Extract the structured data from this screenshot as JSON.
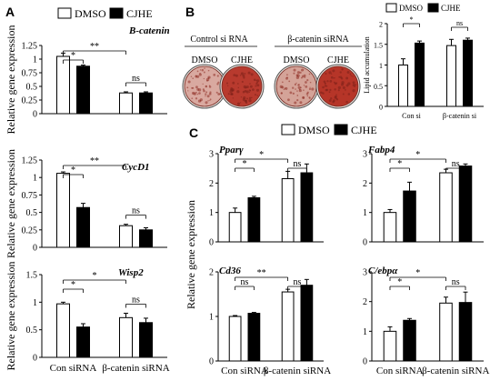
{
  "panels": {
    "A": "A",
    "B": "B",
    "C": "C"
  },
  "legend": {
    "dmso": "DMSO",
    "cjhe": "CJHE"
  },
  "panel_b_images": {
    "control_label": "Control si RNA",
    "beta_label": "β-catenin siRNA",
    "dish_labels": [
      "DMSO",
      "CJHE",
      "DMSO",
      "CJHE"
    ]
  },
  "colors": {
    "dmso_fill": "#ffffff",
    "cjhe_fill": "#000000",
    "stain": "#b0322a"
  },
  "chart_data": [
    {
      "id": "bcatenin",
      "type": "bar",
      "gene": "B-catenin",
      "ylabel": "Relative gene expression",
      "ylim": [
        0,
        1.25
      ],
      "ticks": [
        "0",
        "0.25",
        "0.5",
        "0.75",
        "1",
        "1.25"
      ],
      "categories": [
        "Con siRNA",
        "β-catenin siRNA"
      ],
      "show_xlabels": false,
      "series": [
        {
          "name": "DMSO",
          "values": [
            1.05,
            0.38
          ],
          "errors": [
            0.06,
            0.02
          ]
        },
        {
          "name": "CJHE",
          "values": [
            0.87,
            0.38
          ],
          "errors": [
            0.02,
            0.02
          ]
        }
      ],
      "annotations": [
        "*",
        "**",
        "ns"
      ]
    },
    {
      "id": "cycd1",
      "type": "bar",
      "gene": "CycD1",
      "ylabel": "Relative gene expression",
      "ylim": [
        0,
        1.25
      ],
      "ticks": [
        "0",
        "0.25",
        "0.5",
        "0.75",
        "1",
        "1.25"
      ],
      "categories": [
        "Con siRNA",
        "β-catenin siRNA"
      ],
      "show_xlabels": false,
      "series": [
        {
          "name": "DMSO",
          "values": [
            1.06,
            0.31
          ],
          "errors": [
            0.02,
            0.02
          ]
        },
        {
          "name": "CJHE",
          "values": [
            0.57,
            0.25
          ],
          "errors": [
            0.06,
            0.03
          ]
        }
      ],
      "annotations": [
        "*",
        "**",
        "ns"
      ]
    },
    {
      "id": "wisp2",
      "type": "bar",
      "gene": "Wisp2",
      "ylabel": "Relative gene expression",
      "ylim": [
        0,
        1.5
      ],
      "ticks": [
        "0",
        "0.5",
        "1",
        "1.5"
      ],
      "categories": [
        "Con siRNA",
        "β-catenin siRNA"
      ],
      "show_xlabels": true,
      "series": [
        {
          "name": "DMSO",
          "values": [
            0.97,
            0.72
          ],
          "errors": [
            0.03,
            0.08
          ]
        },
        {
          "name": "CJHE",
          "values": [
            0.55,
            0.63
          ],
          "errors": [
            0.06,
            0.08
          ]
        }
      ],
      "annotations": [
        "*",
        "*",
        "ns"
      ]
    },
    {
      "id": "lipid",
      "type": "bar",
      "ylabel": "Lipid accumulation",
      "ylim": [
        0,
        2
      ],
      "ticks": [
        "0",
        "0.5",
        "1",
        "1.5",
        "2"
      ],
      "categories": [
        "Con si",
        "β-catenin si"
      ],
      "show_xlabels": true,
      "series": [
        {
          "name": "DMSO",
          "values": [
            1.0,
            1.47
          ],
          "errors": [
            0.15,
            0.15
          ]
        },
        {
          "name": "CJHE",
          "values": [
            1.53,
            1.6
          ],
          "errors": [
            0.05,
            0.05
          ]
        }
      ],
      "annotations": [
        "*",
        "ns"
      ]
    },
    {
      "id": "pparg",
      "type": "bar",
      "gene": "Pparγ",
      "ylabel": "",
      "ylim": [
        0,
        3
      ],
      "ticks": [
        "0",
        "1",
        "2",
        "3"
      ],
      "categories": [
        "Con siRNA",
        "β-catenin siRNA"
      ],
      "show_xlabels": false,
      "series": [
        {
          "name": "DMSO",
          "values": [
            1.0,
            2.15
          ],
          "errors": [
            0.15,
            0.25
          ]
        },
        {
          "name": "CJHE",
          "values": [
            1.5,
            2.35
          ],
          "errors": [
            0.05,
            0.3
          ]
        }
      ],
      "annotations": [
        "*",
        "*",
        "ns"
      ]
    },
    {
      "id": "fabp4",
      "type": "bar",
      "gene": "Fabp4",
      "ylabel": "",
      "ylim": [
        0,
        3
      ],
      "ticks": [
        "0",
        "1",
        "2",
        "3"
      ],
      "categories": [
        "Con siRNA",
        "β-catenin siRNA"
      ],
      "show_xlabels": false,
      "series": [
        {
          "name": "DMSO",
          "values": [
            1.0,
            2.35
          ],
          "errors": [
            0.1,
            0.12
          ]
        },
        {
          "name": "CJHE",
          "values": [
            1.73,
            2.58
          ],
          "errors": [
            0.3,
            0.07
          ]
        }
      ],
      "annotations": [
        "*",
        "*",
        "ns"
      ]
    },
    {
      "id": "cd36",
      "type": "bar",
      "gene": "Cd36",
      "ylabel": "",
      "ylim": [
        0,
        2
      ],
      "ticks": [
        "0",
        "1",
        "2"
      ],
      "categories": [
        "Con siRNA",
        "β-catenin siRNA"
      ],
      "show_xlabels": true,
      "series": [
        {
          "name": "DMSO",
          "values": [
            1.0,
            1.55
          ],
          "errors": [
            0.02,
            0.06
          ]
        },
        {
          "name": "CJHE",
          "values": [
            1.07,
            1.7
          ],
          "errors": [
            0.02,
            0.13
          ]
        }
      ],
      "annotations": [
        "ns",
        "**",
        "ns"
      ]
    },
    {
      "id": "cebpa",
      "type": "bar",
      "gene": "C/ebpα",
      "ylabel": "",
      "ylim": [
        0,
        3
      ],
      "ticks": [
        "0",
        "1",
        "2",
        "3"
      ],
      "categories": [
        "Con siRNA",
        "β-catenin siRNA"
      ],
      "show_xlabels": true,
      "series": [
        {
          "name": "DMSO",
          "values": [
            1.0,
            1.95
          ],
          "errors": [
            0.15,
            0.2
          ]
        },
        {
          "name": "CJHE",
          "values": [
            1.37,
            1.97
          ],
          "errors": [
            0.06,
            0.35
          ]
        }
      ],
      "annotations": [
        "*",
        "*",
        "ns"
      ]
    }
  ],
  "shared_ylabel_c": "Relative gene expression"
}
